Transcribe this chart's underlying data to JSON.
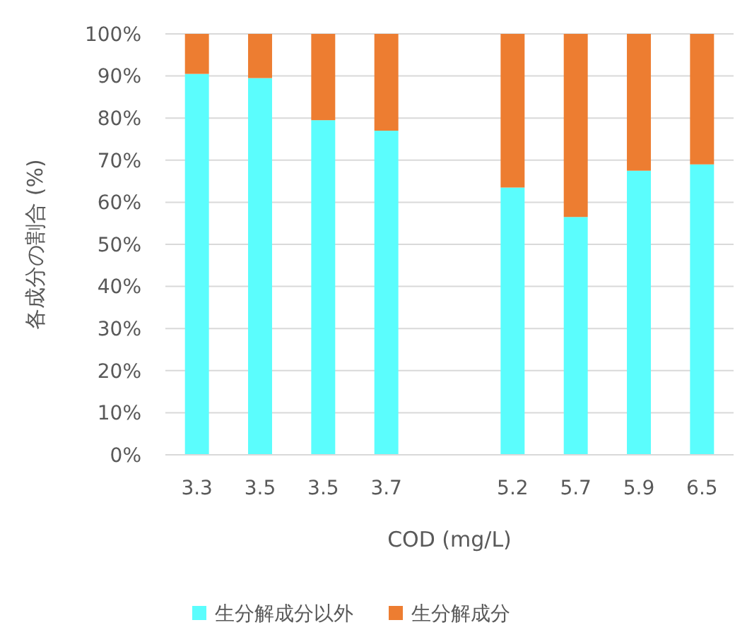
{
  "chart_data": {
    "type": "bar",
    "stacked": true,
    "xlabel": "COD (mg/L)",
    "ylabel": "各成分の割合 (%)",
    "categories": [
      "3.3",
      "3.5",
      "3.5",
      "3.7",
      null,
      "5.2",
      "5.7",
      "5.9",
      "6.5"
    ],
    "series": [
      {
        "name": "生分解成分以外",
        "color": "#5bfdfd",
        "values": [
          90.5,
          89.5,
          79.5,
          77,
          null,
          63.5,
          56.5,
          67.5,
          69
        ]
      },
      {
        "name": "生分解成分",
        "color": "#ed7d31",
        "values": [
          9.5,
          10.5,
          20.5,
          23,
          null,
          36.5,
          43.5,
          32.5,
          31
        ]
      }
    ],
    "ylim": [
      0,
      100
    ],
    "yticks": [
      {
        "value": 0,
        "label": "0%"
      },
      {
        "value": 10,
        "label": "10%"
      },
      {
        "value": 20,
        "label": "20%"
      },
      {
        "value": 30,
        "label": "30%"
      },
      {
        "value": 40,
        "label": "40%"
      },
      {
        "value": 50,
        "label": "50%"
      },
      {
        "value": 60,
        "label": "60%"
      },
      {
        "value": 70,
        "label": "70%"
      },
      {
        "value": 80,
        "label": "80%"
      },
      {
        "value": 90,
        "label": "90%"
      },
      {
        "value": 100,
        "label": "100%"
      }
    ],
    "grid": "y",
    "legend": "bottom"
  }
}
